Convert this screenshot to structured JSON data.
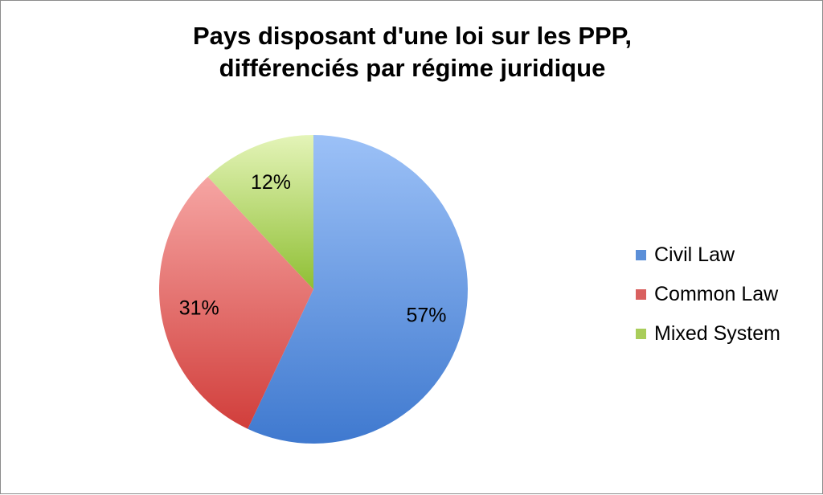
{
  "chart_data": {
    "type": "pie",
    "title": "Pays disposant d'une loi sur les PPP,",
    "subtitle": "différenciés par régime juridique",
    "labels": [
      "Civil Law",
      "Common Law",
      "Mixed System"
    ],
    "values": [
      57,
      31,
      12
    ],
    "data_labels": [
      "57%",
      "31%",
      "12%"
    ],
    "colors": [
      "#5b8fd8",
      "#d9605f",
      "#a9cd5a"
    ],
    "legend_position": "right"
  }
}
